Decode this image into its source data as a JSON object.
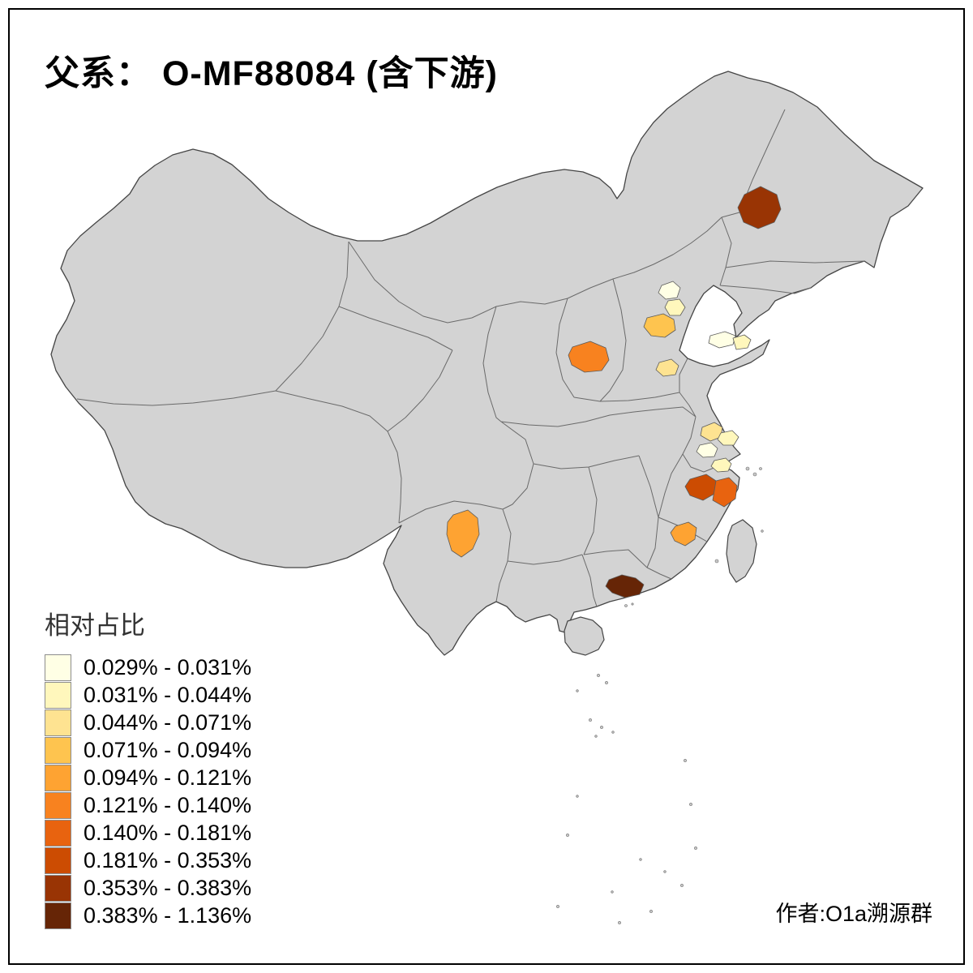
{
  "page": {
    "background": "#ffffff",
    "frame_color": "#000000"
  },
  "title": "父系： O-MF88084 (含下游)",
  "attribution": "作者:O1a溯源群",
  "legend": {
    "title": "相对占比",
    "items": [
      {
        "label": "0.029% - 0.031%",
        "color": "#FFFFE5"
      },
      {
        "label": "0.031% - 0.044%",
        "color": "#FFF7BC"
      },
      {
        "label": "0.044% - 0.071%",
        "color": "#FEE391"
      },
      {
        "label": "0.071% - 0.094%",
        "color": "#FEC44F"
      },
      {
        "label": "0.094% - 0.121%",
        "color": "#FEA332"
      },
      {
        "label": "0.121% - 0.140%",
        "color": "#F8821F"
      },
      {
        "label": "0.140% - 0.181%",
        "color": "#E8630F"
      },
      {
        "label": "0.181% - 0.353%",
        "color": "#CC4C02"
      },
      {
        "label": "0.353% - 0.383%",
        "color": "#993404"
      },
      {
        "label": "0.383% - 1.136%",
        "color": "#662506"
      }
    ]
  },
  "map": {
    "base_fill": "#d3d3d3",
    "outline_color": "#454545",
    "province_border_color": "#6a6a6a",
    "regions": [
      {
        "id": "northeast",
        "bin": "0.353% - 0.383%",
        "color": "#993404"
      },
      {
        "id": "beijing-a",
        "bin": "0.029% - 0.031%",
        "color": "#FFFFE5"
      },
      {
        "id": "beijing-b",
        "bin": "0.031% - 0.044%",
        "color": "#FFF7BC"
      },
      {
        "id": "hebei-central",
        "bin": "0.071% - 0.094%",
        "color": "#FEC44F"
      },
      {
        "id": "shanxi",
        "bin": "0.121% - 0.140%",
        "color": "#F8821F"
      },
      {
        "id": "hebei-south",
        "bin": "0.044% - 0.071%",
        "color": "#FEE391"
      },
      {
        "id": "shandong-a",
        "bin": "0.029% - 0.031%",
        "color": "#FFFFE5"
      },
      {
        "id": "shandong-b",
        "bin": "0.031% - 0.044%",
        "color": "#FFF7BC"
      },
      {
        "id": "jiangsu-a",
        "bin": "0.044% - 0.071%",
        "color": "#FEE391"
      },
      {
        "id": "jiangsu-b",
        "bin": "0.031% - 0.044%",
        "color": "#FFF7BC"
      },
      {
        "id": "jiangsu-c",
        "bin": "0.029% - 0.031%",
        "color": "#FFFFE5"
      },
      {
        "id": "jiangsu-d",
        "bin": "0.031% - 0.044%",
        "color": "#FFF7BC"
      },
      {
        "id": "zhejiang-west",
        "bin": "0.181% - 0.353%",
        "color": "#CC4C02"
      },
      {
        "id": "zhejiang-east",
        "bin": "0.140% - 0.181%",
        "color": "#E8630F"
      },
      {
        "id": "yunnan",
        "bin": "0.094% - 0.121%",
        "color": "#FEA332"
      },
      {
        "id": "fujian",
        "bin": "0.094% - 0.121%",
        "color": "#FEA332"
      },
      {
        "id": "guangdong",
        "bin": "0.383% - 1.136%",
        "color": "#662506"
      }
    ]
  }
}
